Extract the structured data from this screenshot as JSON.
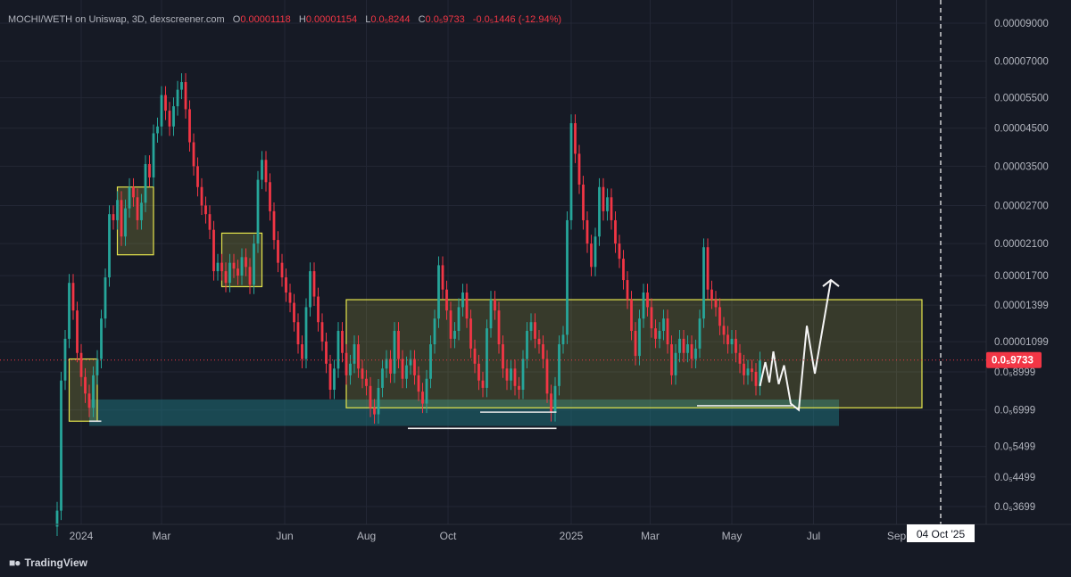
{
  "legend": {
    "symbol": "MOCHI/WETH on Uniswap, 3D, dexscreener.com",
    "open_key": "O",
    "open": "0.00001118",
    "high_key": "H",
    "high": "0.00001154",
    "low_key": "L",
    "low": "0.0₅8244",
    "close_key": "C",
    "close": "0.0₅9733",
    "change": "-0.0₅1446 (-12.94%)"
  },
  "branding": {
    "text": "TradingView"
  },
  "colors": {
    "background": "#161a25",
    "up": "#26a69a",
    "down": "#f23645",
    "range_box": "#e6e64d",
    "support_box": "#1f6f78",
    "price_tag": "#f23645"
  },
  "chart_data": {
    "type": "candlestick",
    "scale": "log",
    "pair": "MOCHI/WETH",
    "timeframe": "3D",
    "last_price_label": "0.0₅9733",
    "last_price": 9.733e-06,
    "crosshair_date_label": "04 Oct '25",
    "y_tick_labels": [
      {
        "label": "0.00009000",
        "value": 9e-05
      },
      {
        "label": "0.00007000",
        "value": 7e-05
      },
      {
        "label": "0.00005500",
        "value": 5.5e-05
      },
      {
        "label": "0.00004500",
        "value": 4.5e-05
      },
      {
        "label": "0.00003500",
        "value": 3.5e-05
      },
      {
        "label": "0.00002700",
        "value": 2.7e-05
      },
      {
        "label": "0.00002100",
        "value": 2.1e-05
      },
      {
        "label": "0.00001700",
        "value": 1.7e-05
      },
      {
        "label": "0.00001399",
        "value": 1.399e-05
      },
      {
        "label": "0.00001099",
        "value": 1.099e-05
      },
      {
        "label": "0.0₅8999",
        "value": 8.999e-06
      },
      {
        "label": "0.0₅6999",
        "value": 6.999e-06
      },
      {
        "label": "0.0₅5499",
        "value": 5.499e-06
      },
      {
        "label": "0.0₅4499",
        "value": 4.499e-06
      },
      {
        "label": "0.0₅3699",
        "value": 3.699e-06
      }
    ],
    "x_tick_labels": [
      {
        "label": "2024",
        "date": "2024-01-01"
      },
      {
        "label": "Mar",
        "date": "2024-03-01"
      },
      {
        "label": "Jun",
        "date": "2024-06-01"
      },
      {
        "label": "Aug",
        "date": "2024-08-01"
      },
      {
        "label": "Oct",
        "date": "2024-10-01"
      },
      {
        "label": "2025",
        "date": "2025-01-01"
      },
      {
        "label": "Mar",
        "date": "2025-03-01"
      },
      {
        "label": "May",
        "date": "2025-05-01"
      },
      {
        "label": "Jul",
        "date": "2025-07-01"
      },
      {
        "label": "Sep",
        "date": "2025-09-01"
      }
    ],
    "crosshair_date": "2025-10-04",
    "closes": [
      [
        "2023-12-14",
        3.6e-06
      ],
      [
        "2023-12-17",
        8.5e-06
      ],
      [
        "2023-12-20",
        1.12e-05
      ],
      [
        "2023-12-23",
        1.62e-05
      ],
      [
        "2023-12-26",
        1.35e-05
      ],
      [
        "2023-12-29",
        1.02e-05
      ],
      [
        "2024-01-01",
        8.7e-06
      ],
      [
        "2024-01-04",
        7.8e-06
      ],
      [
        "2024-01-07",
        7.1e-06
      ],
      [
        "2024-01-10",
        8.8e-06
      ],
      [
        "2024-01-13",
        9.8e-06
      ],
      [
        "2024-01-16",
        1.28e-05
      ],
      [
        "2024-01-19",
        1.68e-05
      ],
      [
        "2024-01-22",
        2.55e-05
      ],
      [
        "2024-01-25",
        2.45e-05
      ],
      [
        "2024-01-28",
        2.8e-05
      ],
      [
        "2024-01-31",
        2.2e-05
      ],
      [
        "2024-02-03",
        2.65e-05
      ],
      [
        "2024-02-06",
        3.05e-05
      ],
      [
        "2024-02-09",
        2.85e-05
      ],
      [
        "2024-02-12",
        2.45e-05
      ],
      [
        "2024-02-15",
        2.75e-05
      ],
      [
        "2024-02-18",
        3.55e-05
      ],
      [
        "2024-02-21",
        3.25e-05
      ],
      [
        "2024-02-24",
        4.35e-05
      ],
      [
        "2024-02-27",
        4.55e-05
      ],
      [
        "2024-03-01",
        5.6e-05
      ],
      [
        "2024-03-04",
        5.05e-05
      ],
      [
        "2024-03-07",
        4.55e-05
      ],
      [
        "2024-03-10",
        5.2e-05
      ],
      [
        "2024-03-13",
        5.8e-05
      ],
      [
        "2024-03-16",
        6.1e-05
      ],
      [
        "2024-03-19",
        5.1e-05
      ],
      [
        "2024-03-22",
        4.1e-05
      ],
      [
        "2024-03-25",
        3.5e-05
      ],
      [
        "2024-03-28",
        3.05e-05
      ],
      [
        "2024-03-31",
        2.7e-05
      ],
      [
        "2024-04-03",
        2.55e-05
      ],
      [
        "2024-04-06",
        2.3e-05
      ],
      [
        "2024-04-09",
        1.75e-05
      ],
      [
        "2024-04-12",
        1.85e-05
      ],
      [
        "2024-04-15",
        1.75e-05
      ],
      [
        "2024-04-18",
        1.62e-05
      ],
      [
        "2024-04-21",
        1.85e-05
      ],
      [
        "2024-04-24",
        1.78e-05
      ],
      [
        "2024-04-27",
        1.7e-05
      ],
      [
        "2024-04-30",
        1.92e-05
      ],
      [
        "2024-05-03",
        1.8e-05
      ],
      [
        "2024-05-06",
        1.6e-05
      ],
      [
        "2024-05-09",
        2.1e-05
      ],
      [
        "2024-05-12",
        3.2e-05
      ],
      [
        "2024-05-15",
        3.65e-05
      ],
      [
        "2024-05-18",
        3.15e-05
      ],
      [
        "2024-05-21",
        2.6e-05
      ],
      [
        "2024-05-24",
        2.15e-05
      ],
      [
        "2024-05-27",
        1.85e-05
      ],
      [
        "2024-05-30",
        1.68e-05
      ],
      [
        "2024-06-02",
        1.52e-05
      ],
      [
        "2024-06-05",
        1.42e-05
      ],
      [
        "2024-06-08",
        1.25e-05
      ],
      [
        "2024-06-11",
        1.08e-05
      ],
      [
        "2024-06-14",
        9.8e-06
      ],
      [
        "2024-06-17",
        1.38e-05
      ],
      [
        "2024-06-20",
        1.75e-05
      ],
      [
        "2024-06-23",
        1.48e-05
      ],
      [
        "2024-06-26",
        1.25e-05
      ],
      [
        "2024-06-29",
        1.1e-05
      ],
      [
        "2024-07-02",
        9.5e-06
      ],
      [
        "2024-07-05",
        8e-06
      ],
      [
        "2024-07-08",
        9.2e-06
      ],
      [
        "2024-07-11",
        1.18e-05
      ],
      [
        "2024-07-14",
        1.02e-05
      ],
      [
        "2024-07-17",
        8.8e-06
      ],
      [
        "2024-07-20",
        9.5e-06
      ],
      [
        "2024-07-23",
        1.08e-05
      ],
      [
        "2024-07-26",
        9.2e-06
      ],
      [
        "2024-07-29",
        8.6e-06
      ],
      [
        "2024-08-01",
        8.2e-06
      ],
      [
        "2024-08-04",
        7.1e-06
      ],
      [
        "2024-08-07",
        6.8e-06
      ],
      [
        "2024-08-10",
        8.1e-06
      ],
      [
        "2024-08-13",
        9.2e-06
      ],
      [
        "2024-08-16",
        9.8e-06
      ],
      [
        "2024-08-19",
        8.9e-06
      ],
      [
        "2024-08-22",
        1.18e-05
      ],
      [
        "2024-08-25",
        9.8e-06
      ],
      [
        "2024-08-28",
        8.6e-06
      ],
      [
        "2024-08-31",
        9.4e-06
      ],
      [
        "2024-09-03",
        9.8e-06
      ],
      [
        "2024-09-06",
        8.8e-06
      ],
      [
        "2024-09-09",
        7.9e-06
      ],
      [
        "2024-09-12",
        7.3e-06
      ],
      [
        "2024-09-15",
        8.6e-06
      ],
      [
        "2024-09-18",
        1.08e-05
      ],
      [
        "2024-09-21",
        1.28e-05
      ],
      [
        "2024-09-24",
        1.82e-05
      ],
      [
        "2024-09-27",
        1.55e-05
      ],
      [
        "2024-09-30",
        1.35e-05
      ],
      [
        "2024-10-03",
        1.12e-05
      ],
      [
        "2024-10-06",
        1.18e-05
      ],
      [
        "2024-10-09",
        1.38e-05
      ],
      [
        "2024-10-12",
        1.52e-05
      ],
      [
        "2024-10-15",
        1.28e-05
      ],
      [
        "2024-10-18",
        1.05e-05
      ],
      [
        "2024-10-21",
        9.5e-06
      ],
      [
        "2024-10-24",
        8.5e-06
      ],
      [
        "2024-10-27",
        8.1e-06
      ],
      [
        "2024-10-30",
        1.2e-05
      ],
      [
        "2024-11-02",
        1.45e-05
      ],
      [
        "2024-11-05",
        1.35e-05
      ],
      [
        "2024-11-08",
        1.08e-05
      ],
      [
        "2024-11-11",
        9.2e-06
      ],
      [
        "2024-11-14",
        8.5e-06
      ],
      [
        "2024-11-17",
        9.2e-06
      ],
      [
        "2024-11-20",
        8.2e-06
      ],
      [
        "2024-11-23",
        8e-06
      ],
      [
        "2024-11-26",
        9.8e-06
      ],
      [
        "2024-11-29",
        1.18e-05
      ],
      [
        "2024-12-02",
        1.25e-05
      ],
      [
        "2024-12-05",
        1.12e-05
      ],
      [
        "2024-12-08",
        1.08e-05
      ],
      [
        "2024-12-11",
        9.8e-06
      ],
      [
        "2024-12-14",
        7.8e-06
      ],
      [
        "2024-12-17",
        6.9e-06
      ],
      [
        "2024-12-20",
        8.2e-06
      ],
      [
        "2024-12-23",
        1.08e-05
      ],
      [
        "2024-12-26",
        1.15e-05
      ],
      [
        "2024-12-29",
        2.45e-05
      ],
      [
        "2025-01-01",
        4.65e-05
      ],
      [
        "2025-01-04",
        3.8e-05
      ],
      [
        "2025-01-07",
        3.1e-05
      ],
      [
        "2025-01-10",
        2.45e-05
      ],
      [
        "2025-01-13",
        2.1e-05
      ],
      [
        "2025-01-16",
        1.8e-05
      ],
      [
        "2025-01-19",
        2.2e-05
      ],
      [
        "2025-01-22",
        3.05e-05
      ],
      [
        "2025-01-25",
        2.6e-05
      ],
      [
        "2025-01-28",
        2.85e-05
      ],
      [
        "2025-01-31",
        2.45e-05
      ],
      [
        "2025-02-03",
        2.1e-05
      ],
      [
        "2025-02-06",
        1.9e-05
      ],
      [
        "2025-02-09",
        1.65e-05
      ],
      [
        "2025-02-12",
        1.45e-05
      ],
      [
        "2025-02-15",
        1.18e-05
      ],
      [
        "2025-02-18",
        1e-05
      ],
      [
        "2025-02-21",
        1.28e-05
      ],
      [
        "2025-02-24",
        1.52e-05
      ],
      [
        "2025-02-27",
        1.38e-05
      ],
      [
        "2025-03-02",
        1.2e-05
      ],
      [
        "2025-03-05",
        1.12e-05
      ],
      [
        "2025-03-08",
        1.18e-05
      ],
      [
        "2025-03-11",
        1.28e-05
      ],
      [
        "2025-03-14",
        1.08e-05
      ],
      [
        "2025-03-17",
        8.8e-06
      ],
      [
        "2025-03-20",
        1.02e-05
      ],
      [
        "2025-03-23",
        1.12e-05
      ],
      [
        "2025-03-26",
        1.02e-05
      ],
      [
        "2025-03-29",
        1.08e-05
      ],
      [
        "2025-04-01",
        9.8e-06
      ],
      [
        "2025-04-04",
        1.05e-05
      ],
      [
        "2025-04-07",
        1.28e-05
      ],
      [
        "2025-04-10",
        2.05e-05
      ],
      [
        "2025-04-13",
        1.55e-05
      ],
      [
        "2025-04-16",
        1.45e-05
      ],
      [
        "2025-04-19",
        1.38e-05
      ],
      [
        "2025-04-22",
        1.22e-05
      ],
      [
        "2025-04-25",
        1.15e-05
      ],
      [
        "2025-04-28",
        1.08e-05
      ],
      [
        "2025-05-01",
        1.12e-05
      ],
      [
        "2025-05-04",
        1.02e-05
      ],
      [
        "2025-05-07",
        9.5e-06
      ],
      [
        "2025-05-10",
        8.8e-06
      ],
      [
        "2025-05-13",
        9.2e-06
      ],
      [
        "2025-05-16",
        9e-06
      ],
      [
        "2025-05-19",
        8.2e-06
      ],
      [
        "2025-05-22",
        9.7e-06
      ]
    ],
    "annotations": {
      "range_box": {
        "from": "2024-07-17",
        "to": "2025-09-20",
        "low": 7.1e-06,
        "high": 1.45e-05
      },
      "support_box": {
        "from": "2024-01-07",
        "to": "2025-07-20",
        "low": 6.3e-06,
        "high": 7.5e-06
      },
      "small_boxes": [
        {
          "from": "2023-12-23",
          "to": "2024-01-13",
          "low": 6.5e-06,
          "high": 9.8e-06
        },
        {
          "from": "2024-01-28",
          "to": "2024-02-24",
          "low": 1.95e-05,
          "high": 3.05e-05
        },
        {
          "from": "2024-04-15",
          "to": "2024-05-15",
          "low": 1.58e-05,
          "high": 2.25e-05
        }
      ],
      "projection_path": [
        [
          "2025-05-22",
          8.2e-06
        ],
        [
          "2025-05-26",
          9.6e-06
        ],
        [
          "2025-05-29",
          8.4e-06
        ],
        [
          "2025-06-01",
          1.03e-05
        ],
        [
          "2025-06-05",
          8.3e-06
        ],
        [
          "2025-06-09",
          9.4e-06
        ],
        [
          "2025-06-14",
          7.3e-06
        ],
        [
          "2025-06-20",
          7e-06
        ],
        [
          "2025-06-26",
          1.22e-05
        ],
        [
          "2025-07-02",
          8.9e-06
        ],
        [
          "2025-07-14",
          1.65e-05
        ]
      ]
    }
  }
}
